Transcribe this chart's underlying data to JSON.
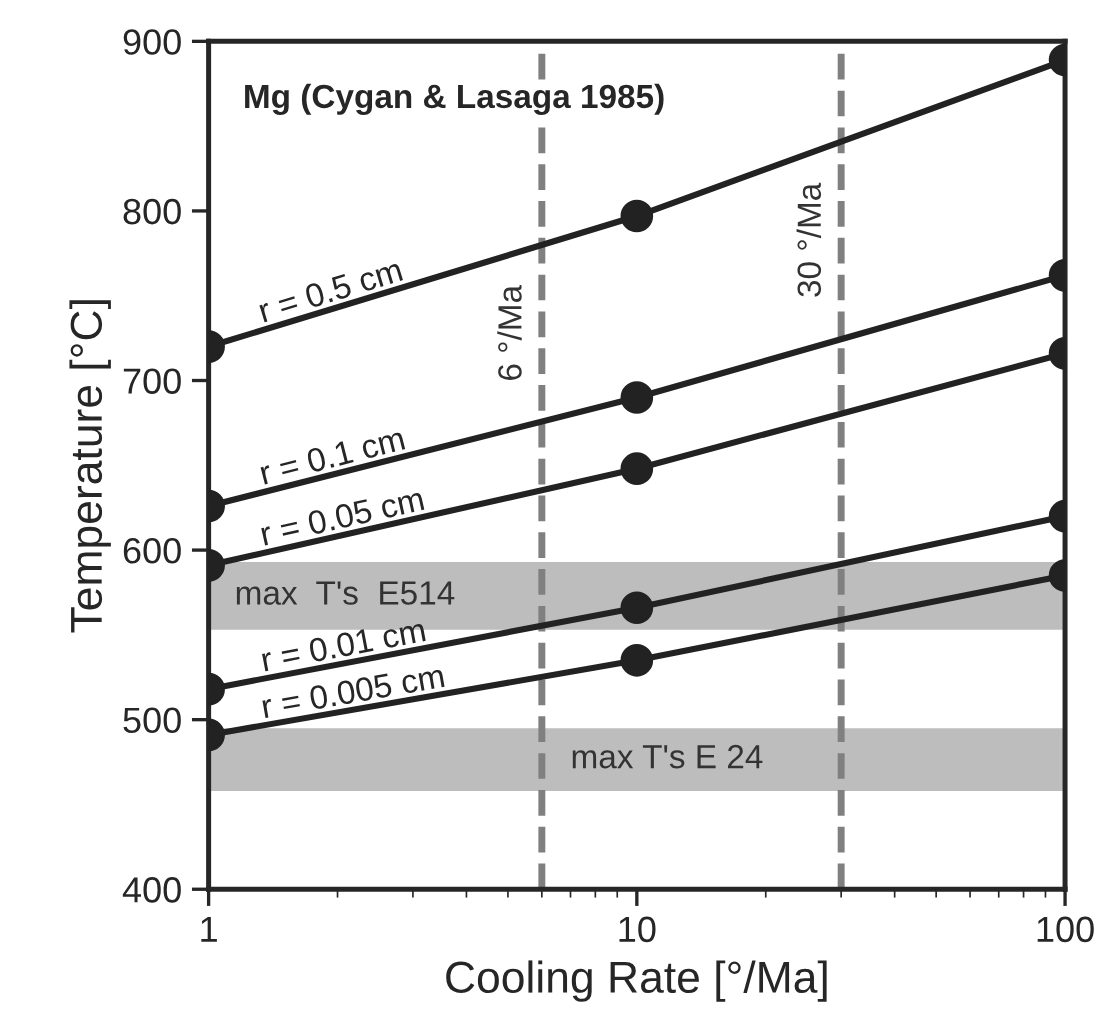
{
  "chart_data": {
    "type": "line",
    "xlabel": "Cooling Rate [°/Ma]",
    "ylabel": "Temperature [°C]",
    "annotations": [
      "Mg (Cygan & Lasaga 1985)"
    ],
    "x": [
      1,
      10,
      100
    ],
    "series": [
      {
        "name": "r = 0.5 cm",
        "color": "#222222",
        "values": [
          720,
          797,
          889
        ]
      },
      {
        "name": "r = 0.1 cm",
        "color": "#222222",
        "values": [
          626,
          690,
          762
        ]
      },
      {
        "name": "r = 0.05 cm",
        "color": "#222222",
        "values": [
          591,
          648,
          716
        ]
      },
      {
        "name": "r = 0.01 cm",
        "color": "#222222",
        "values": [
          518,
          566,
          620
        ]
      },
      {
        "name": "r = 0.005 cm",
        "color": "#222222",
        "values": [
          491,
          535,
          585
        ]
      }
    ],
    "log": "x",
    "xlim": [
      1,
      100
    ],
    "xticks": [
      1,
      10,
      100
    ],
    "ylim": [
      400,
      900
    ],
    "yticks": [
      400,
      500,
      600,
      700,
      800,
      900
    ],
    "ref_lines": [
      {
        "axis": "x",
        "value": 6,
        "label": "6 °/Ma",
        "color": "#808080",
        "line_style": "dashed"
      },
      {
        "axis": "x",
        "value": 30,
        "label": "30 °/Ma",
        "color": "#808080",
        "line_style": "dashed"
      }
    ],
    "bands": [
      {
        "axis": "y",
        "from": 553,
        "to": 593,
        "label": "max  T's  E514",
        "color": "#bdbdbd"
      },
      {
        "axis": "y",
        "from": 458,
        "to": 495,
        "label": "max T's E 24",
        "color": "#bdbdbd"
      }
    ],
    "grid": false,
    "marker": "circle",
    "line_style": "solid"
  }
}
